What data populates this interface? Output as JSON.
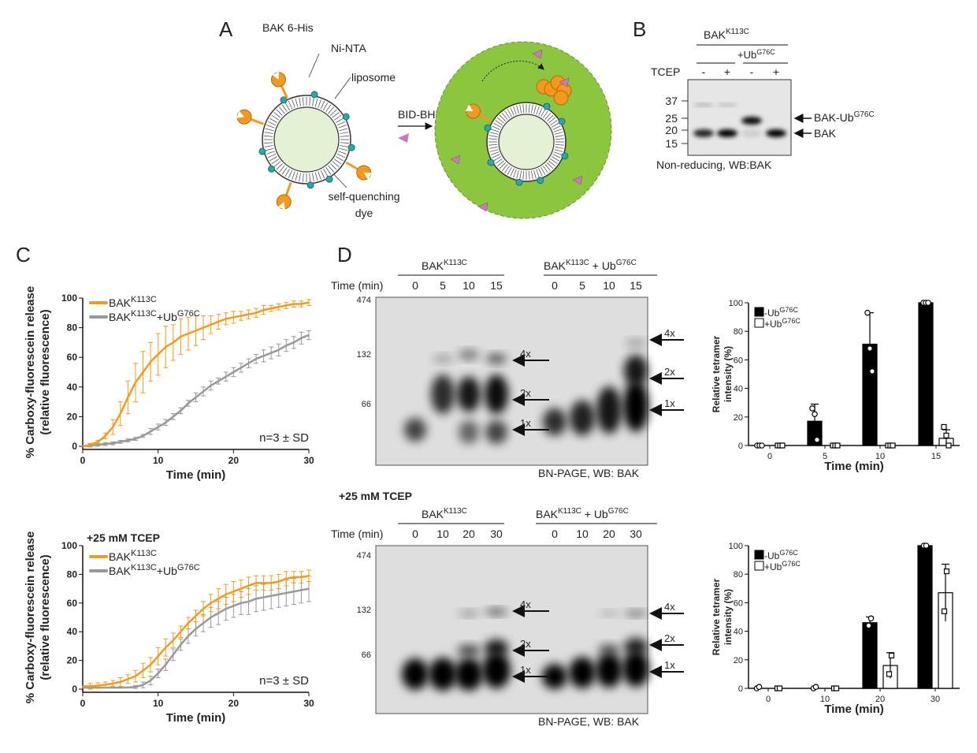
{
  "panels": {
    "A": {
      "label": "A",
      "bak_his": "BAK 6-His",
      "ni_nta": "Ni-NTA",
      "liposome": "liposome",
      "dye_line1": "self-quenching",
      "dye_line2": "dye",
      "bid": "BID-BH3",
      "colors": {
        "bak": "#f39a1e",
        "ni": "#2aa7a7",
        "lumen": "#e4f1d4",
        "released": "#8cc63f",
        "bid": "#c77bb8"
      }
    },
    "B": {
      "label": "B",
      "header_base": "BAK",
      "header_sup": "K113C",
      "ub_base": "+Ub",
      "ub_sup": "G76C",
      "tcep": "TCEP",
      "lanes": [
        "-",
        "+",
        "-",
        "+"
      ],
      "markers": [
        "37",
        "25",
        "20",
        "15"
      ],
      "arrow_top_base": "BAK-Ub",
      "arrow_top_sup": "G76C",
      "arrow_bottom": "BAK",
      "caption": "Non-reducing, WB:BAK"
    },
    "C": {
      "label": "C"
    },
    "D": {
      "label": "D",
      "bak_base": "BAK",
      "bak_sup": "K113C",
      "ub_mid": " + Ub",
      "ub_sup": "G76C",
      "time_label": "Time (min)",
      "top_times": [
        "0",
        "5",
        "10",
        "15"
      ],
      "bottom_times": [
        "0",
        "10",
        "20",
        "30"
      ],
      "markers": [
        "474",
        "132",
        "66"
      ],
      "species": [
        "4x",
        "2x",
        "1x"
      ],
      "caption": "BN-PAGE, WB: BAK",
      "tcep_heading": "+25 mM TCEP"
    }
  },
  "chart_data": [
    {
      "type": "line",
      "panel": "C-top",
      "xlabel": "Time (min)",
      "ylabel": "% Carboxy-fluorescein release",
      "ylabel2": "(relative fluorescence)",
      "xlim": [
        0,
        30
      ],
      "ylim": [
        0,
        100
      ],
      "xticks": [
        "0",
        "10",
        "20",
        "30"
      ],
      "yticks": [
        "0",
        "20",
        "40",
        "60",
        "80",
        "100"
      ],
      "annotation": "n=3 ± SD",
      "legend": "top-left",
      "series": [
        {
          "name": "BAK^K113C",
          "legend_base": "BAK",
          "legend_sup": "K113C",
          "legend_tail": "",
          "legend_tail_sup": "",
          "color": "#f39a1e",
          "x": [
            0,
            1,
            2,
            3,
            4,
            5,
            6,
            7,
            8,
            9,
            10,
            11,
            12,
            13,
            14,
            15,
            16,
            17,
            18,
            19,
            20,
            21,
            22,
            23,
            24,
            25,
            26,
            27,
            28,
            29,
            30
          ],
          "y": [
            0,
            1,
            3,
            7,
            13,
            22,
            33,
            43,
            50,
            57,
            62,
            67,
            70,
            74,
            76,
            78,
            80,
            82,
            84,
            86,
            87,
            88,
            89,
            90,
            92,
            93,
            94,
            95,
            96,
            96,
            97
          ],
          "sd": [
            1,
            1,
            1,
            2,
            5,
            8,
            11,
            13,
            14,
            13,
            14,
            14,
            12,
            12,
            11,
            10,
            8,
            6,
            5,
            4,
            4,
            3,
            3,
            3,
            3,
            2,
            2,
            2,
            2,
            2,
            2
          ]
        },
        {
          "name": "BAK^K113C+Ub^G76C",
          "legend_base": "BAK",
          "legend_sup": "K113C",
          "legend_tail": "+Ub",
          "legend_tail_sup": "G76C",
          "color": "#999999",
          "x": [
            0,
            1,
            2,
            3,
            4,
            5,
            6,
            7,
            8,
            9,
            10,
            11,
            12,
            13,
            14,
            15,
            16,
            17,
            18,
            19,
            20,
            21,
            22,
            23,
            24,
            25,
            26,
            27,
            28,
            29,
            30
          ],
          "y": [
            0,
            0.5,
            1,
            1.5,
            2,
            3,
            4,
            5,
            7,
            10,
            13,
            16,
            20,
            24,
            29,
            33,
            37,
            41,
            44,
            47,
            50,
            53,
            56,
            59,
            61,
            63,
            65,
            68,
            70,
            73,
            75
          ],
          "sd": [
            1,
            1,
            1,
            1,
            1,
            1,
            1,
            1,
            1,
            2,
            2,
            2,
            2,
            2,
            2,
            3,
            3,
            3,
            2,
            3,
            3,
            3,
            3,
            3,
            4,
            4,
            4,
            4,
            4,
            4,
            3
          ]
        }
      ]
    },
    {
      "type": "line",
      "panel": "C-bottom",
      "title": "+25 mM TCEP",
      "xlabel": "Time (min)",
      "ylabel": "% Carboxy-fluorescein release",
      "ylabel2": "(relative fluorescence)",
      "xlim": [
        0,
        30
      ],
      "ylim": [
        0,
        100
      ],
      "xticks": [
        "0",
        "10",
        "20",
        "30"
      ],
      "yticks": [
        "0",
        "20",
        "40",
        "60",
        "80",
        "100"
      ],
      "annotation": "n=3 ± SD",
      "legend": "top-left",
      "series": [
        {
          "name": "BAK^K113C",
          "legend_base": "BAK",
          "legend_sup": "K113C",
          "legend_tail": "",
          "legend_tail_sup": "",
          "color": "#f39a1e",
          "x": [
            0,
            1,
            2,
            3,
            4,
            5,
            6,
            7,
            8,
            9,
            10,
            11,
            12,
            13,
            14,
            15,
            16,
            17,
            18,
            19,
            20,
            21,
            22,
            23,
            24,
            25,
            26,
            27,
            28,
            29,
            30
          ],
          "y": [
            2,
            2,
            2.5,
            3,
            4,
            5,
            7,
            9,
            13,
            17,
            23,
            29,
            34,
            40,
            46,
            51,
            56,
            60,
            63,
            66,
            68,
            70,
            72,
            74,
            74,
            74,
            75,
            77,
            78,
            78,
            79
          ],
          "sd": [
            2,
            2,
            2,
            2,
            2,
            3,
            3,
            4,
            5,
            5,
            6,
            6,
            5,
            4,
            4,
            4,
            5,
            6,
            7,
            7,
            7,
            6,
            6,
            5,
            5,
            5,
            5,
            5,
            4,
            4,
            4
          ]
        },
        {
          "name": "BAK^K113C+Ub^G76C",
          "legend_base": "BAK",
          "legend_sup": "K113C",
          "legend_tail": "+Ub",
          "legend_tail_sup": "G76C",
          "color": "#999999",
          "x": [
            0,
            1,
            2,
            3,
            4,
            5,
            6,
            7,
            8,
            9,
            10,
            11,
            12,
            13,
            14,
            15,
            16,
            17,
            18,
            19,
            20,
            21,
            22,
            23,
            24,
            25,
            26,
            27,
            28,
            29,
            30
          ],
          "y": [
            1,
            1,
            1,
            1,
            1,
            1,
            1.2,
            1.5,
            3,
            6,
            11,
            17,
            24,
            31,
            37,
            42,
            46,
            50,
            53,
            56,
            58,
            60,
            61,
            63,
            64,
            65,
            66,
            67,
            68,
            69,
            70
          ],
          "sd": [
            0,
            0,
            0,
            0,
            0,
            0,
            0,
            1,
            2,
            3,
            3,
            4,
            4,
            4,
            5,
            5,
            6,
            7,
            8,
            8,
            8,
            8,
            9,
            9,
            9,
            9,
            9,
            9,
            9,
            9,
            9
          ]
        }
      ]
    },
    {
      "type": "bar",
      "panel": "D-top",
      "xlabel": "Time (min)",
      "ylabel": "Relative tetramer",
      "ylabel2": "intensity (%)",
      "categories": [
        "0",
        "5",
        "10",
        "15"
      ],
      "ylim": [
        0,
        100
      ],
      "yticks": [
        "0",
        "20",
        "40",
        "60",
        "80",
        "100"
      ],
      "legend": "top-left",
      "series": [
        {
          "name": "-Ub^G76C",
          "legend_base": "-Ub",
          "legend_sup": "G76C",
          "fill": "#000000",
          "marker": "circle",
          "values": [
            0,
            17,
            71,
            100
          ],
          "sd": [
            0,
            12,
            22,
            0
          ],
          "points": [
            [
              0,
              0,
              0
            ],
            [
              26,
              22,
              4
            ],
            [
              93,
              68,
              52
            ],
            [
              100,
              100,
              100
            ]
          ]
        },
        {
          "name": "+Ub^G76C",
          "legend_base": "+Ub",
          "legend_sup": "G76C",
          "fill": "#ffffff",
          "marker": "square",
          "values": [
            0,
            0,
            0,
            5
          ],
          "sd": [
            0,
            0,
            0,
            6
          ],
          "points": [
            [
              0,
              0,
              0
            ],
            [
              0,
              0,
              0
            ],
            [
              0,
              0,
              0
            ],
            [
              13,
              7,
              0
            ]
          ]
        }
      ]
    },
    {
      "type": "bar",
      "panel": "D-bottom",
      "xlabel": "Time (min)",
      "ylabel": "Relative tetramer",
      "ylabel2": "intensity (%)",
      "categories": [
        "0",
        "10",
        "20",
        "30"
      ],
      "ylim": [
        0,
        100
      ],
      "yticks": [
        "0",
        "20",
        "40",
        "60",
        "80",
        "100"
      ],
      "legend": "top-left",
      "series": [
        {
          "name": "-Ub^G76C",
          "legend_base": "-Ub",
          "legend_sup": "G76C",
          "fill": "#000000",
          "marker": "circle",
          "values": [
            0,
            0,
            46,
            100
          ],
          "sd": [
            0,
            0,
            4,
            0
          ],
          "points": [
            [
              0,
              1
            ],
            [
              0,
              1
            ],
            [
              44,
              49
            ],
            [
              100,
              100
            ]
          ]
        },
        {
          "name": "+Ub^G76C",
          "legend_base": "+Ub",
          "legend_sup": "G76C",
          "fill": "#ffffff",
          "marker": "square",
          "values": [
            0,
            0,
            16,
            67
          ],
          "sd": [
            0,
            0,
            9,
            20
          ],
          "points": [
            [
              0,
              0
            ],
            [
              0,
              0
            ],
            [
              10,
              23
            ],
            [
              54,
              82
            ]
          ]
        }
      ]
    }
  ]
}
